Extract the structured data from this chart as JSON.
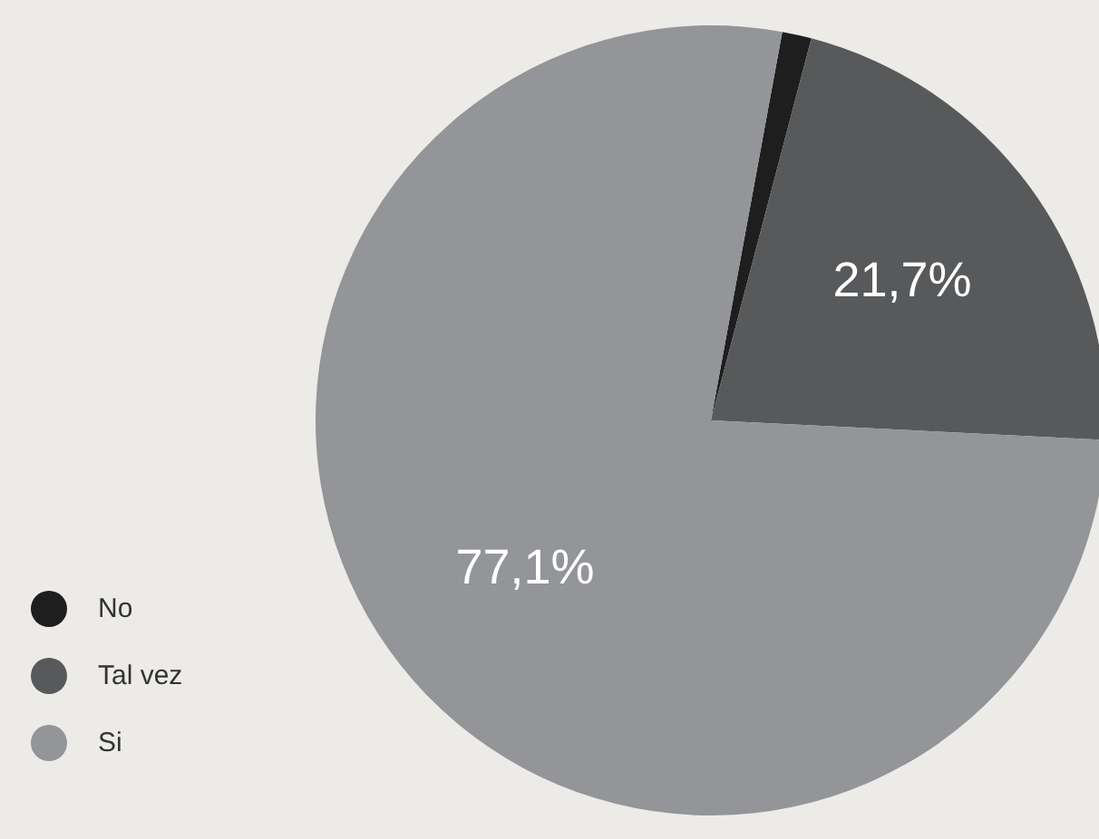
{
  "chart_data": {
    "type": "pie",
    "categories": [
      "No",
      "Tal vez",
      "Si"
    ],
    "values": [
      1.2,
      21.7,
      77.1
    ],
    "colors": [
      "#1e1e1e",
      "#58595b",
      "#939598"
    ],
    "value_labels": [
      null,
      "21,7%",
      "77,1%"
    ],
    "legend": "bottom left"
  }
}
